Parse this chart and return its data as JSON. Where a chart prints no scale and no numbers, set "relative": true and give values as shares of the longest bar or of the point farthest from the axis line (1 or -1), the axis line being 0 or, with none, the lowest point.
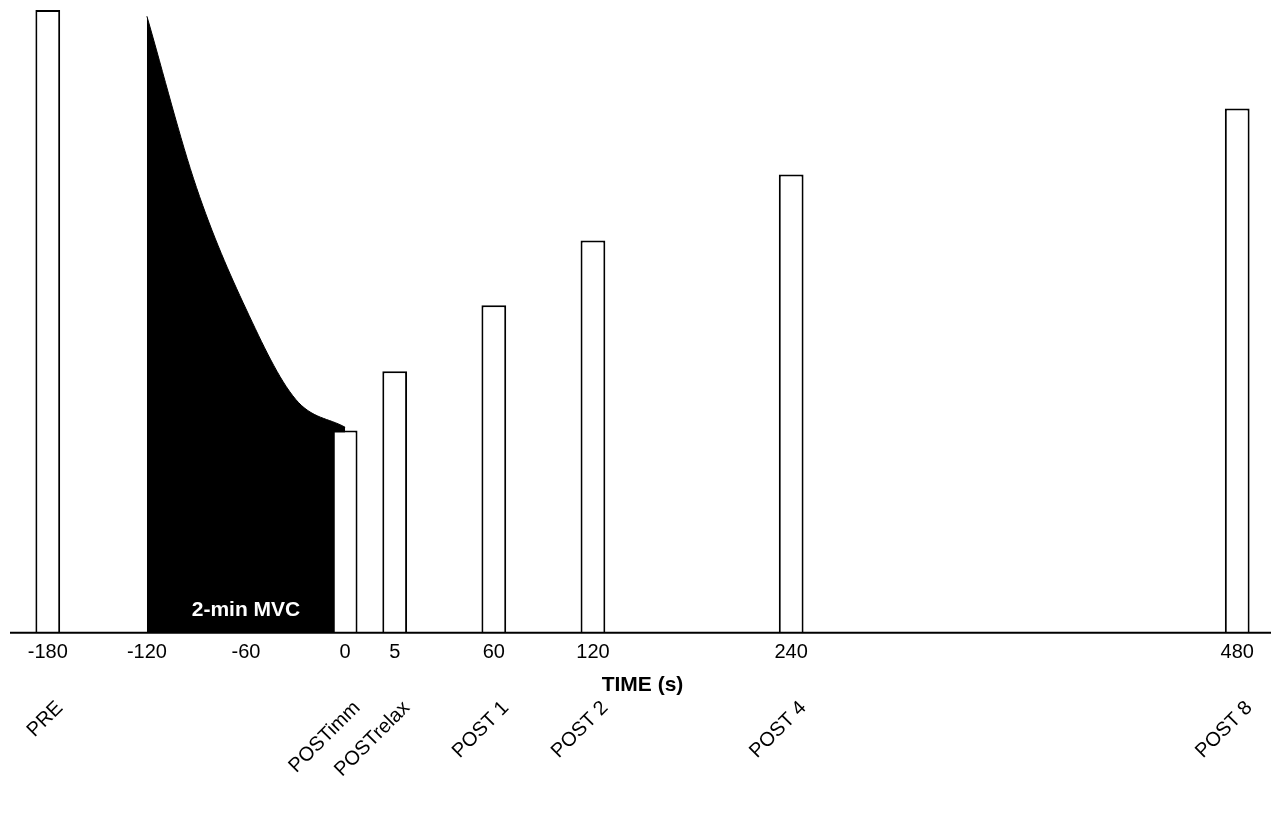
{
  "chart_data": {
    "type": "bar",
    "relative": true,
    "xlabel": "TIME (s)",
    "grid": false,
    "legend": false,
    "categories": [
      "-180",
      null,
      "-120",
      null,
      "-60",
      null,
      "0",
      "5",
      null,
      "60",
      null,
      "120",
      null,
      null,
      null,
      "240",
      null,
      null,
      null,
      null,
      null,
      null,
      null,
      null,
      "480"
    ],
    "series": [
      {
        "type": "area",
        "color": "#000000",
        "values": [
          null,
          null,
          0.99,
          0.715,
          0.52,
          0.375,
          0.33,
          null,
          null,
          null,
          null,
          null,
          null,
          null,
          null,
          null,
          null,
          null,
          null,
          null,
          null,
          null,
          null,
          null,
          null
        ]
      },
      {
        "color": "#ffffff",
        "values": [
          1,
          null,
          null,
          null,
          null,
          null,
          0.325,
          0.42,
          null,
          0.526,
          null,
          0.63,
          null,
          null,
          null,
          0.736,
          null,
          null,
          null,
          null,
          null,
          null,
          null,
          null,
          0.842
        ]
      }
    ],
    "annotations": [
      "PRE",
      "POSTimm",
      "POSTrelax",
      "POST 1",
      "POST 2",
      "POST 4",
      "POST 8",
      "2-min MVC"
    ]
  }
}
